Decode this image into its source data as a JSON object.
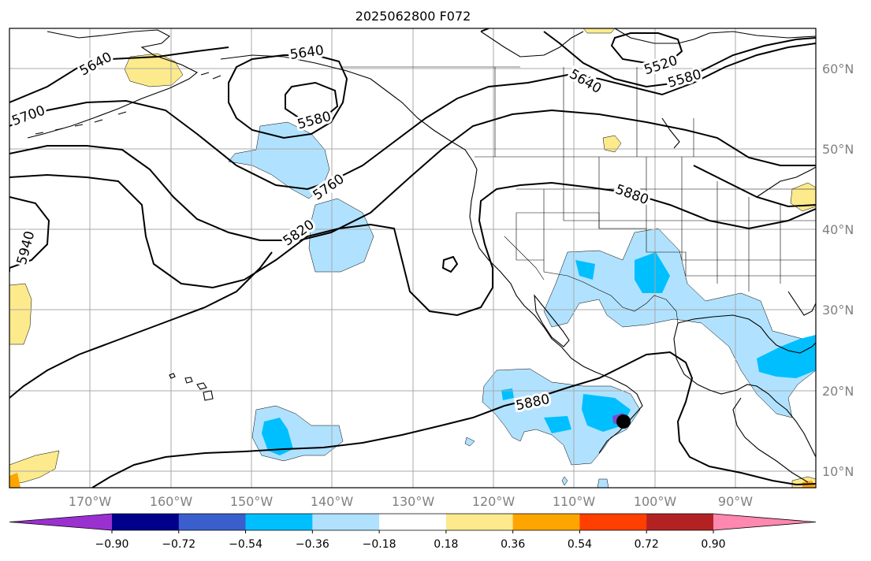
{
  "title": "2025062800 F072",
  "lat_labels": [
    "60°N",
    "50°N",
    "40°N",
    "30°N",
    "20°N",
    "10°N"
  ],
  "lon_labels": [
    "170°W",
    "160°W",
    "150°W",
    "140°W",
    "130°W",
    "120°W",
    "110°W",
    "100°W",
    "90°W"
  ],
  "contour_labels": [
    "5640",
    "5640",
    "5520",
    "5580",
    "5640",
    "5700",
    "5580",
    "5760",
    "5880",
    "5820",
    "5940",
    "5880"
  ],
  "colorbar": {
    "tick_labels": [
      "−0.90",
      "−0.72",
      "−0.54",
      "−0.36",
      "−0.18",
      "0.18",
      "0.36",
      "0.54",
      "0.72",
      "0.90"
    ],
    "colors": [
      "#9b30d0",
      "#00008b",
      "#3a5fcd",
      "#00bfff",
      "#b0e2ff",
      "#ffffff",
      "#fcea8c",
      "#ffa500",
      "#ff3f00",
      "#b22222",
      "#ff88b0"
    ]
  },
  "colors": {
    "ocean": "#ffffff",
    "grid": "#a8a8a8",
    "contour": "#000000",
    "marker": "#000000"
  }
}
